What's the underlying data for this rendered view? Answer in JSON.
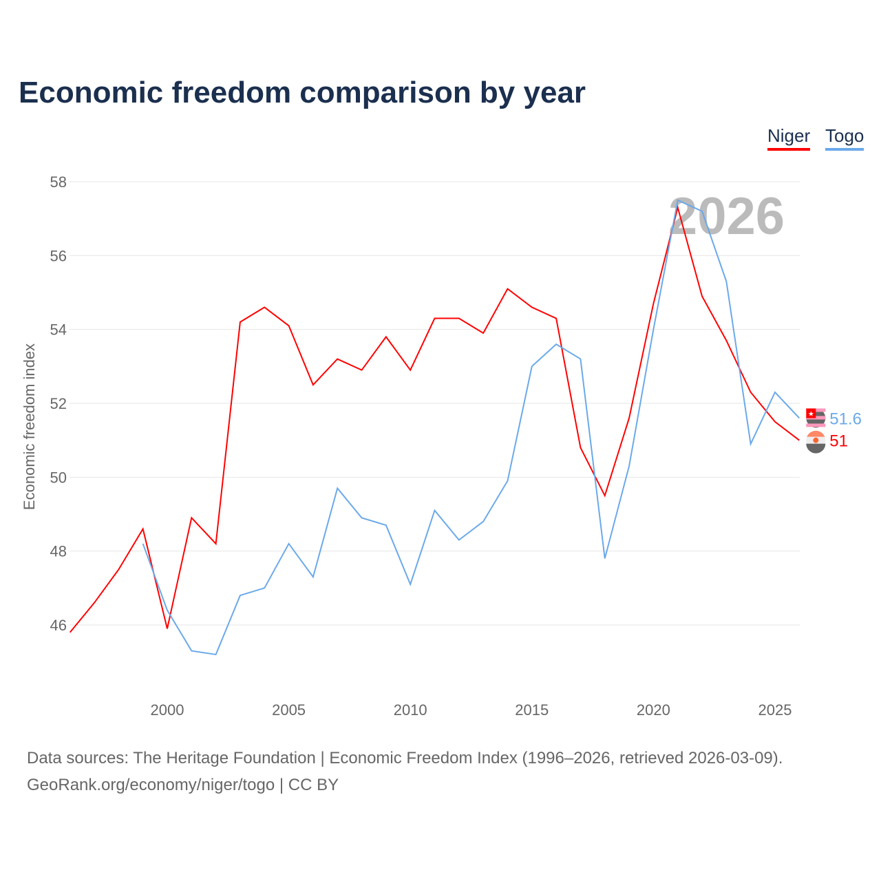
{
  "chart_data": {
    "type": "line",
    "title": "Economic freedom comparison by year",
    "ylabel": "Economic freedom index",
    "xlabel": "",
    "ylim": [
      44,
      58
    ],
    "xlim": [
      1996,
      2026
    ],
    "yticks": [
      46,
      48,
      50,
      52,
      54,
      56,
      58
    ],
    "xticks": [
      2000,
      2005,
      2010,
      2015,
      2020,
      2025
    ],
    "grid": true,
    "legend_placement": "top-right",
    "annotation_year": "2026",
    "series": [
      {
        "name": "Niger",
        "color": "#ff0000",
        "end_label": "51",
        "x": [
          1996,
          1997,
          1998,
          1999,
          2000,
          2001,
          2002,
          2003,
          2004,
          2005,
          2006,
          2007,
          2008,
          2009,
          2010,
          2011,
          2012,
          2013,
          2014,
          2015,
          2016,
          2017,
          2018,
          2019,
          2020,
          2021,
          2022,
          2023,
          2024,
          2025,
          2026
        ],
        "values": [
          45.8,
          46.6,
          47.5,
          48.6,
          45.9,
          48.9,
          48.2,
          54.2,
          54.6,
          54.1,
          52.5,
          53.2,
          52.9,
          53.8,
          52.9,
          54.3,
          54.3,
          53.9,
          55.1,
          54.6,
          54.3,
          50.8,
          49.5,
          51.6,
          54.7,
          57.3,
          54.9,
          53.7,
          52.3,
          51.5,
          51.0
        ]
      },
      {
        "name": "Togo",
        "color": "#6aa9ea",
        "end_label": "51.6",
        "x": [
          1999,
          2000,
          2001,
          2002,
          2003,
          2004,
          2005,
          2006,
          2007,
          2008,
          2009,
          2010,
          2011,
          2012,
          2013,
          2014,
          2015,
          2016,
          2017,
          2018,
          2019,
          2020,
          2021,
          2022,
          2023,
          2024,
          2025,
          2026
        ],
        "values": [
          48.2,
          46.4,
          45.3,
          45.2,
          46.8,
          47.0,
          48.2,
          47.3,
          49.7,
          48.9,
          48.7,
          47.1,
          49.1,
          48.3,
          48.8,
          49.9,
          53.0,
          53.6,
          53.2,
          47.8,
          50.3,
          54.0,
          57.5,
          57.2,
          55.3,
          50.9,
          52.3,
          51.6
        ]
      }
    ]
  },
  "footer": {
    "line1": "Data sources: The Heritage Foundation | Economic Freedom Index (1996–2026, retrieved 2026-03-09).",
    "line2": "GeoRank.org/economy/niger/togo | CC BY"
  }
}
